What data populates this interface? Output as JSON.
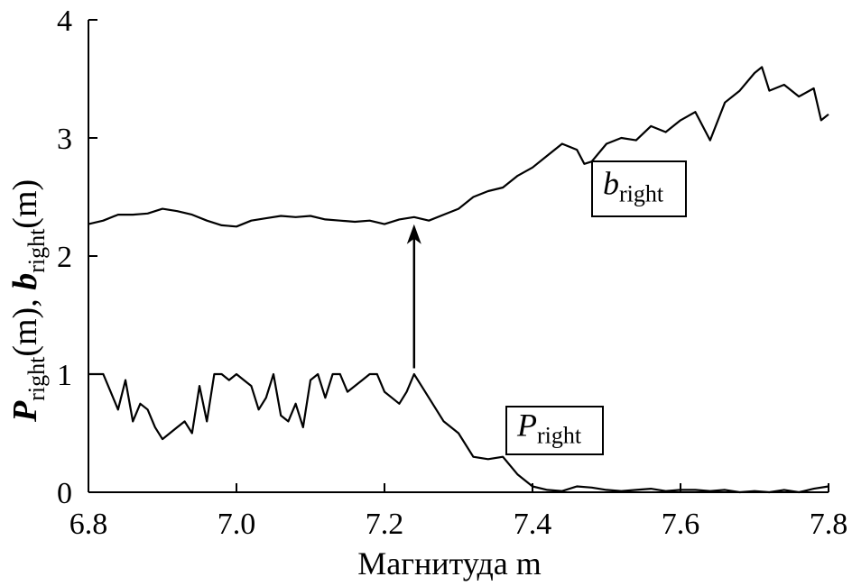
{
  "chart_data": {
    "type": "line",
    "xlabel": "Магнитуда m",
    "ylabel": {
      "p_main": "P",
      "p_sub": "right",
      "p_arg": "(m), ",
      "b_main": "b",
      "b_sub": "right",
      "b_arg": "(m)"
    },
    "xlim": [
      6.8,
      7.8
    ],
    "ylim": [
      0,
      4
    ],
    "x_ticks": [
      6.8,
      7.0,
      7.2,
      7.4,
      7.6,
      7.8
    ],
    "x_tick_labels": [
      "6.8",
      "7.0",
      "7.2",
      "7.4",
      "7.6",
      "7.8"
    ],
    "y_ticks": [
      0,
      1,
      2,
      3,
      4
    ],
    "y_tick_labels": [
      "0",
      "1",
      "2",
      "3",
      "4"
    ],
    "series": [
      {
        "name_main": "b",
        "name_sub": "right",
        "x": [
          6.8,
          6.82,
          6.84,
          6.86,
          6.88,
          6.9,
          6.92,
          6.94,
          6.96,
          6.98,
          7.0,
          7.02,
          7.04,
          7.06,
          7.08,
          7.1,
          7.12,
          7.14,
          7.16,
          7.18,
          7.2,
          7.22,
          7.24,
          7.26,
          7.28,
          7.3,
          7.32,
          7.34,
          7.36,
          7.38,
          7.4,
          7.42,
          7.44,
          7.46,
          7.47,
          7.48,
          7.5,
          7.52,
          7.54,
          7.56,
          7.58,
          7.6,
          7.62,
          7.64,
          7.66,
          7.68,
          7.7,
          7.71,
          7.72,
          7.74,
          7.76,
          7.78,
          7.79,
          7.8
        ],
        "values": [
          2.27,
          2.3,
          2.35,
          2.35,
          2.36,
          2.4,
          2.38,
          2.35,
          2.3,
          2.26,
          2.25,
          2.3,
          2.32,
          2.34,
          2.33,
          2.34,
          2.31,
          2.3,
          2.29,
          2.3,
          2.27,
          2.31,
          2.33,
          2.3,
          2.35,
          2.4,
          2.5,
          2.55,
          2.58,
          2.68,
          2.75,
          2.85,
          2.95,
          2.9,
          2.78,
          2.8,
          2.95,
          3.0,
          2.98,
          3.1,
          3.05,
          3.15,
          3.22,
          2.98,
          3.3,
          3.4,
          3.55,
          3.6,
          3.4,
          3.45,
          3.35,
          3.42,
          3.15,
          3.2
        ]
      },
      {
        "name_main": "P",
        "name_sub": "right",
        "x": [
          6.8,
          6.82,
          6.83,
          6.84,
          6.85,
          6.86,
          6.87,
          6.88,
          6.89,
          6.9,
          6.91,
          6.92,
          6.93,
          6.94,
          6.95,
          6.96,
          6.97,
          6.98,
          6.99,
          7.0,
          7.01,
          7.02,
          7.03,
          7.04,
          7.05,
          7.06,
          7.07,
          7.08,
          7.09,
          7.1,
          7.11,
          7.12,
          7.13,
          7.14,
          7.15,
          7.16,
          7.17,
          7.18,
          7.19,
          7.2,
          7.21,
          7.22,
          7.23,
          7.24,
          7.25,
          7.26,
          7.28,
          7.3,
          7.32,
          7.34,
          7.36,
          7.38,
          7.4,
          7.42,
          7.44,
          7.46,
          7.48,
          7.5,
          7.52,
          7.54,
          7.56,
          7.58,
          7.6,
          7.62,
          7.64,
          7.66,
          7.68,
          7.7,
          7.72,
          7.74,
          7.76,
          7.78,
          7.8
        ],
        "values": [
          1.0,
          1.0,
          0.85,
          0.7,
          0.95,
          0.6,
          0.75,
          0.7,
          0.55,
          0.45,
          0.5,
          0.55,
          0.6,
          0.5,
          0.9,
          0.6,
          1.0,
          1.0,
          0.95,
          1.0,
          0.95,
          0.9,
          0.7,
          0.8,
          1.0,
          0.65,
          0.6,
          0.75,
          0.55,
          0.95,
          1.0,
          0.8,
          1.0,
          1.0,
          0.85,
          0.9,
          0.95,
          1.0,
          1.0,
          0.85,
          0.8,
          0.75,
          0.85,
          1.0,
          0.9,
          0.8,
          0.6,
          0.5,
          0.3,
          0.28,
          0.3,
          0.15,
          0.05,
          0.02,
          0.01,
          0.05,
          0.04,
          0.02,
          0.01,
          0.02,
          0.03,
          0.01,
          0.02,
          0.02,
          0.01,
          0.02,
          0.0,
          0.01,
          0.0,
          0.02,
          0.0,
          0.03,
          0.05
        ]
      }
    ],
    "annotation_arrow": {
      "x": 7.24,
      "y_from": 1.05,
      "y_to": 2.3
    }
  }
}
